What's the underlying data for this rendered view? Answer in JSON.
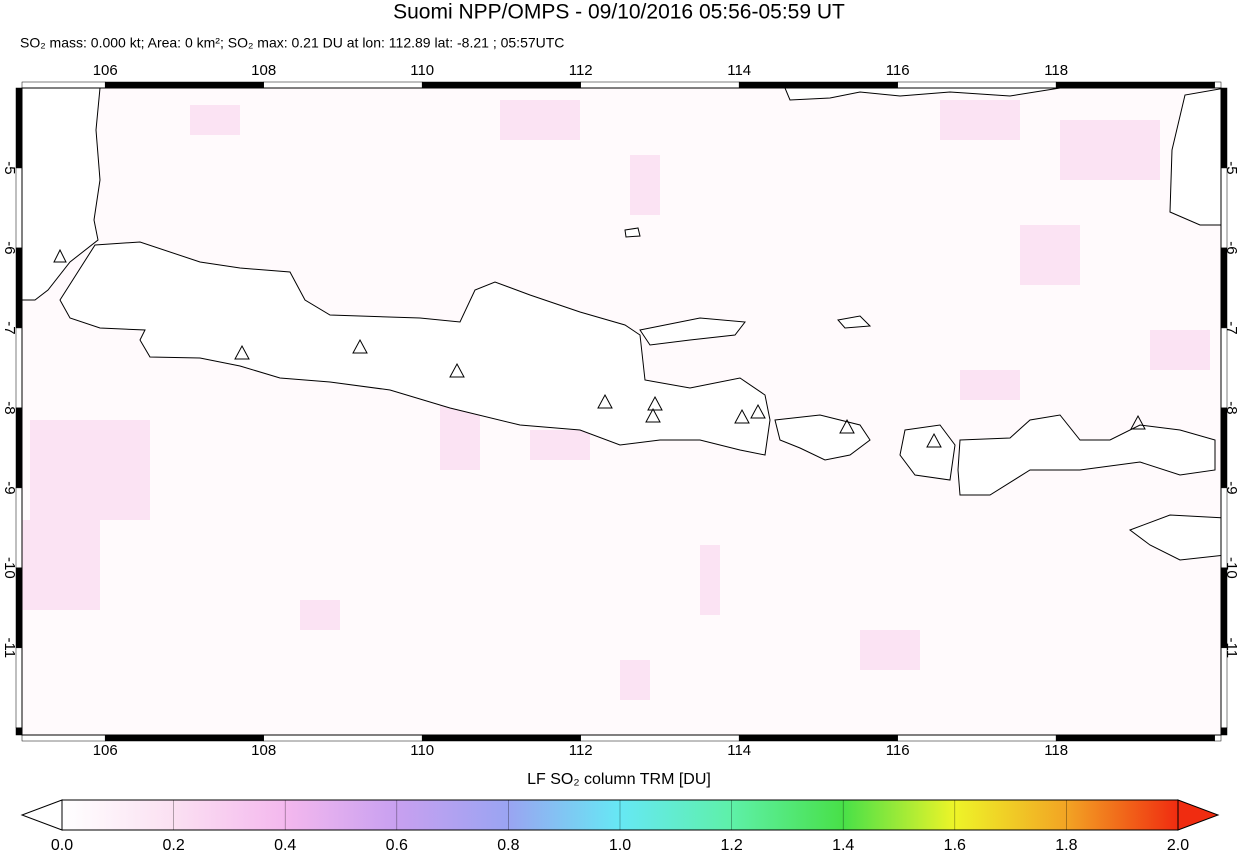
{
  "header": {
    "title": "Suomi NPP/OMPS - 09/10/2016 05:56-05:59 UT",
    "subtitle": "SO₂ mass: 0.000 kt; Area: 0 km²; SO₂ max: 0.21 DU at lon: 112.89 lat: -8.21 ; 05:57UTC"
  },
  "map": {
    "xlim": [
      104.95,
      120.08
    ],
    "ylim": [
      -12.09,
      -4
    ],
    "xticks": [
      106,
      108,
      110,
      112,
      114,
      116,
      118
    ],
    "yticks": [
      -5,
      -6,
      -7,
      -8,
      -9,
      -10,
      -11
    ],
    "grid": true
  },
  "colorbar": {
    "label": "LF SO₂ column TRM [DU]",
    "lim": [
      0,
      2
    ],
    "ticks": [
      {
        "value": 0,
        "label": "0.0"
      },
      0.2,
      0.4,
      0.6,
      0.8,
      {
        "value": 1,
        "label": "1.0"
      },
      1.2,
      1.4,
      1.6,
      1.8,
      {
        "value": 2,
        "label": "2.0"
      }
    ]
  }
}
